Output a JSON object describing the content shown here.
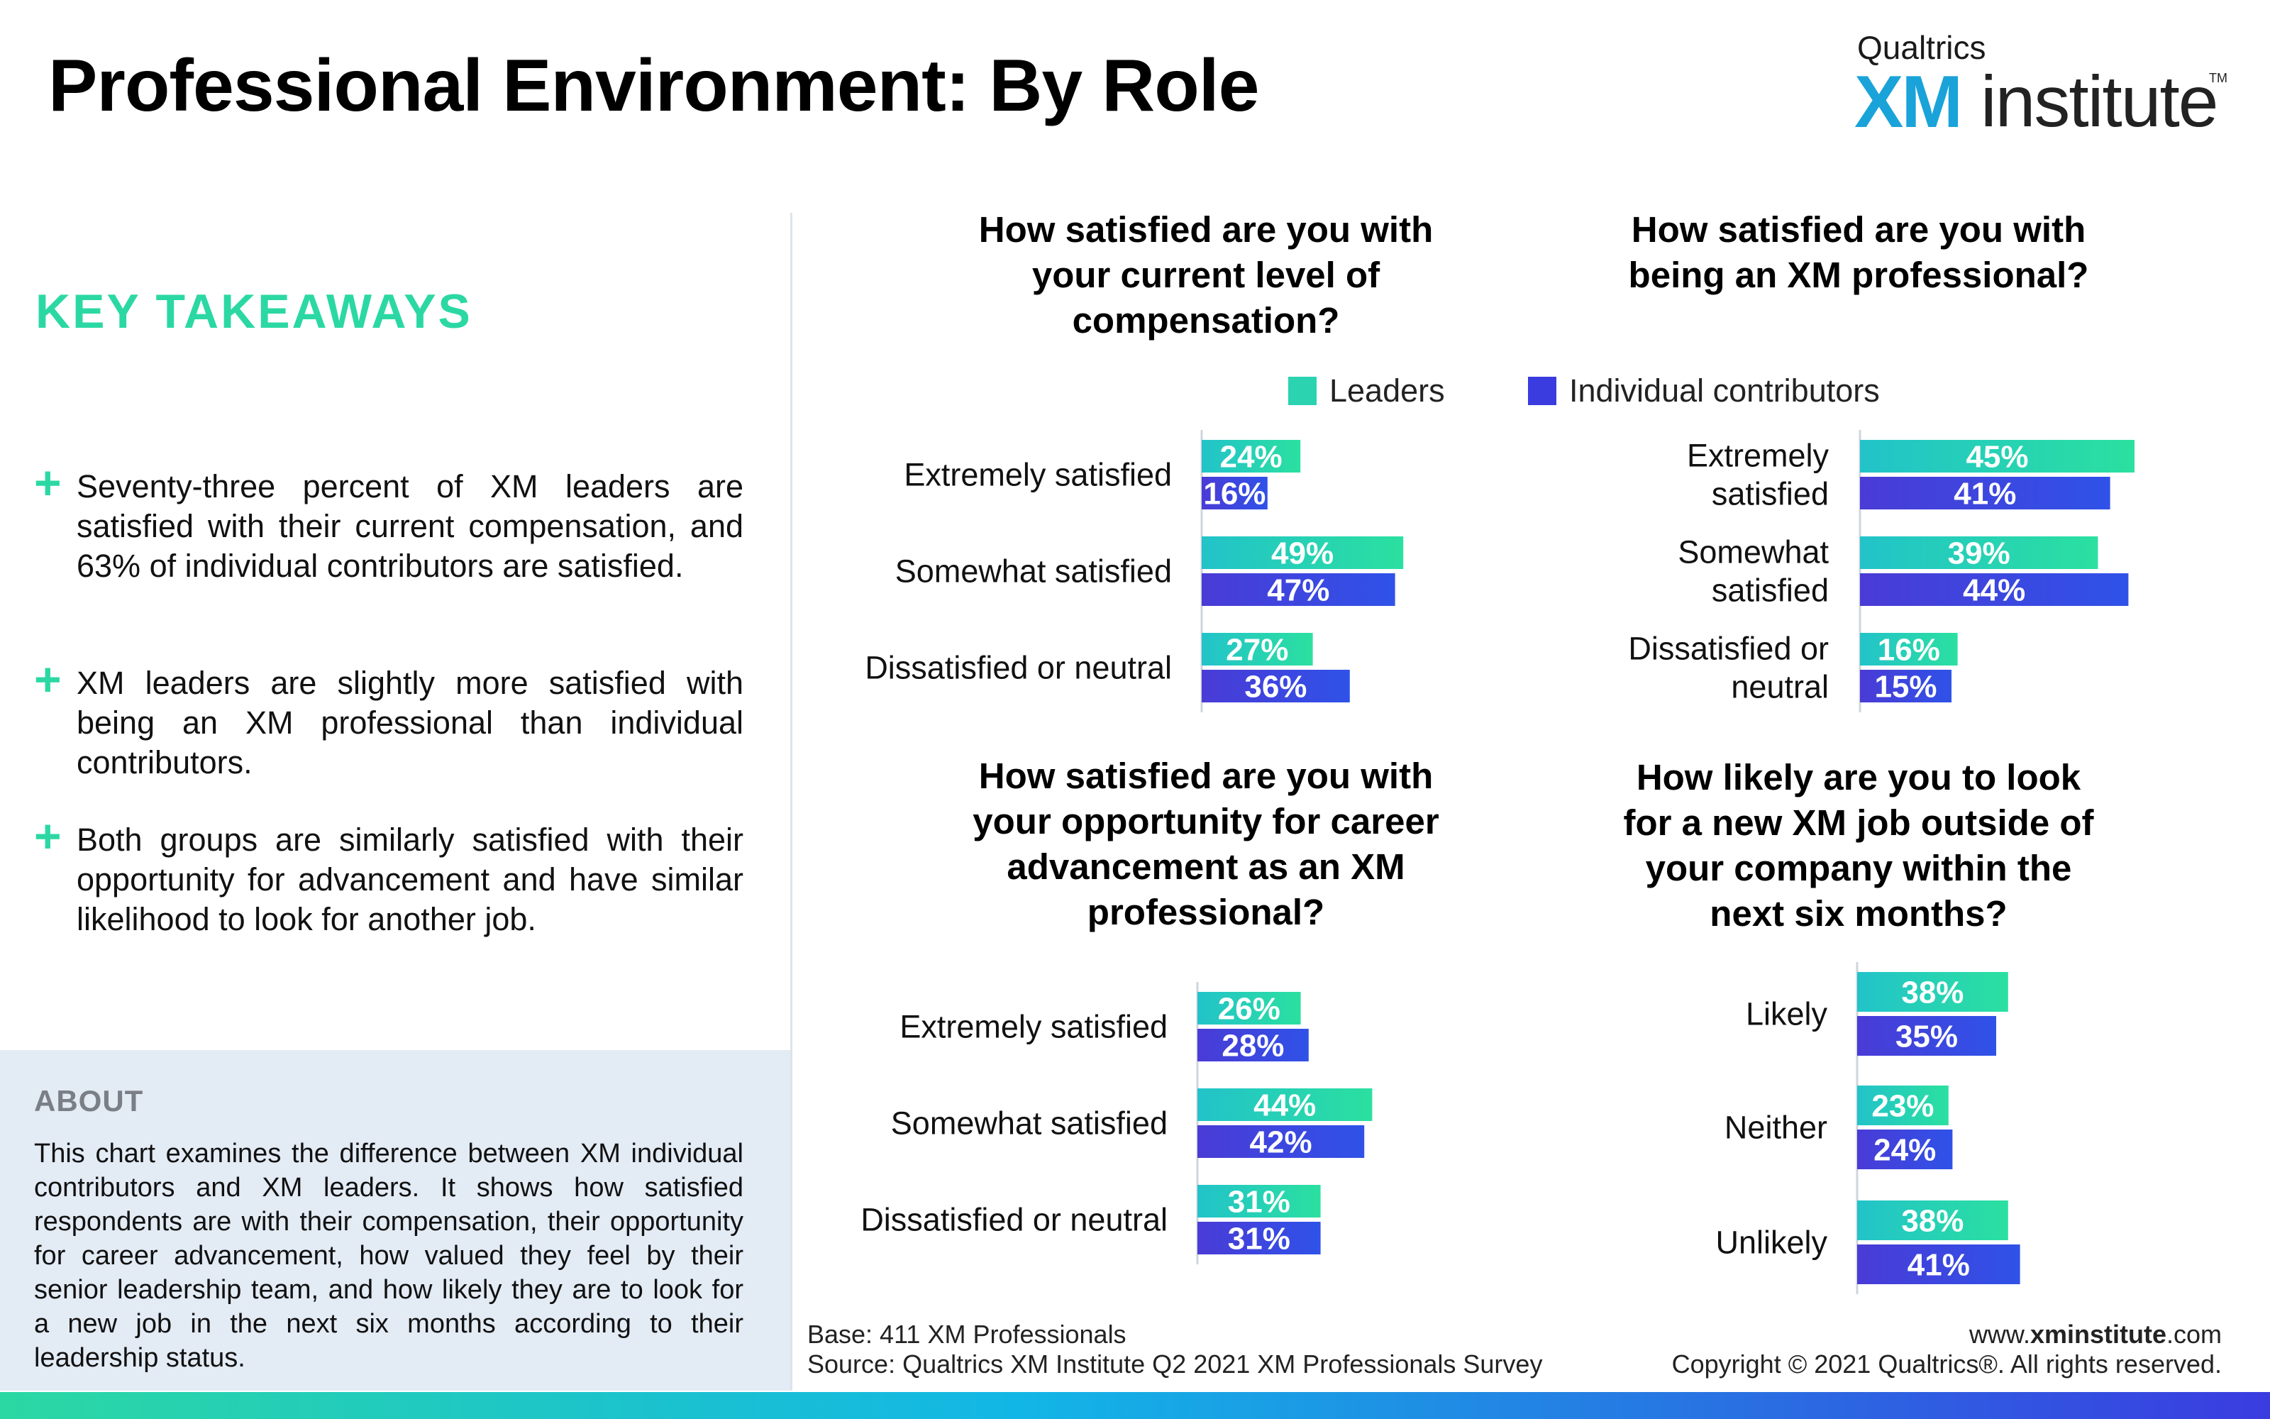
{
  "header": {
    "title": "Professional Environment: By Role",
    "logo_top": "Qualtrics",
    "logo_xm": "XM",
    "logo_institute": "institute",
    "logo_tm": "TM"
  },
  "takeaways": {
    "heading": "KEY TAKEAWAYS",
    "items": [
      "Seventy-three percent of XM leaders are satisfied with their current compensation, and  63% of individual contributors are satisfied.",
      "XM leaders are slightly more satisfied with being an XM professional than individual contributors.",
      "Both groups are similarly satisfied with their opportunity for advancement and have similar likelihood to look for another job."
    ],
    "plus": "+"
  },
  "about": {
    "title": "ABOUT",
    "text": "This chart examines the difference between XM individual contributors and XM leaders. It shows how satisfied respondents are with their compensation, their opportunity for career advancement, how valued they feel by their senior leadership team, and how likely they are to look for a new job in the next six months according to their leadership status."
  },
  "legend": {
    "leaders": "Leaders",
    "individual": "Individual contributors"
  },
  "colors": {
    "leaders_start": "#22c3c9",
    "leaders_end": "#2be0a0",
    "individual_start": "#4a3bd6",
    "individual_end": "#2f52e8",
    "accent": "#2bd8a3"
  },
  "chart_data": [
    {
      "type": "bar",
      "title": "How satisfied are you with your current level of compensation?",
      "categories": [
        "Extremely satisfied",
        "Somewhat satisfied",
        "Dissatisfied or neutral"
      ],
      "series": [
        {
          "name": "Leaders",
          "values": [
            24,
            49,
            27
          ]
        },
        {
          "name": "Individual contributors",
          "values": [
            16,
            47,
            36
          ]
        }
      ],
      "value_labels": [
        [
          "24%",
          "49%",
          "27%"
        ],
        [
          "16%",
          "47%",
          "36%"
        ]
      ]
    },
    {
      "type": "bar",
      "title": "How satisfied are you with being an XM professional?",
      "categories": [
        "Extremely satisfied",
        "Somewhat satisfied",
        "Dissatisfied or neutral"
      ],
      "category_lines": [
        [
          "Extremely",
          "satisfied"
        ],
        [
          "Somewhat",
          "satisfied"
        ],
        [
          "Dissatisfied or",
          "neutral"
        ]
      ],
      "series": [
        {
          "name": "Leaders",
          "values": [
            45,
            39,
            16
          ]
        },
        {
          "name": "Individual contributors",
          "values": [
            41,
            44,
            15
          ]
        }
      ],
      "value_labels": [
        [
          "45%",
          "39%",
          "16%"
        ],
        [
          "41%",
          "44%",
          "15%"
        ]
      ]
    },
    {
      "type": "bar",
      "title": "How satisfied are you with your opportunity for career advancement as an XM professional?",
      "categories": [
        "Extremely satisfied",
        "Somewhat satisfied",
        "Dissatisfied or neutral"
      ],
      "series": [
        {
          "name": "Leaders",
          "values": [
            26,
            44,
            31
          ]
        },
        {
          "name": "Individual contributors",
          "values": [
            28,
            42,
            31
          ]
        }
      ],
      "value_labels": [
        [
          "26%",
          "44%",
          "31%"
        ],
        [
          "28%",
          "42%",
          "31%"
        ]
      ]
    },
    {
      "type": "bar",
      "title": "How likely are you to look for a new XM job outside of your company within the next six months?",
      "categories": [
        "Likely",
        "Neither",
        "Unlikely"
      ],
      "series": [
        {
          "name": "Leaders",
          "values": [
            38,
            23,
            38
          ]
        },
        {
          "name": "Individual contributors",
          "values": [
            35,
            24,
            41
          ]
        }
      ],
      "value_labels": [
        [
          "38%",
          "23%",
          "38%"
        ],
        [
          "35%",
          "24%",
          "41%"
        ]
      ]
    }
  ],
  "questions": {
    "q1_lines": [
      "How satisfied are you with",
      "your current level of",
      "compensation?"
    ],
    "q2_lines": [
      "How satisfied are you with",
      "being an XM professional?"
    ],
    "q3_lines": [
      "How satisfied are you with",
      "your opportunity for career",
      "advancement as an XM",
      "professional?"
    ],
    "q4_lines": [
      "How likely are you to look",
      "for a new XM job outside of",
      "your company within the",
      "next six months?"
    ]
  },
  "footer": {
    "base": "Base: 411 XM Professionals",
    "source": "Source: Qualtrics XM Institute Q2 2021 XM Professionals Survey",
    "url_prefix": "www.",
    "url_bold": "xminstitute",
    "url_suffix": ".com",
    "copyright": "Copyright © 2021 Qualtrics®. All rights reserved."
  }
}
